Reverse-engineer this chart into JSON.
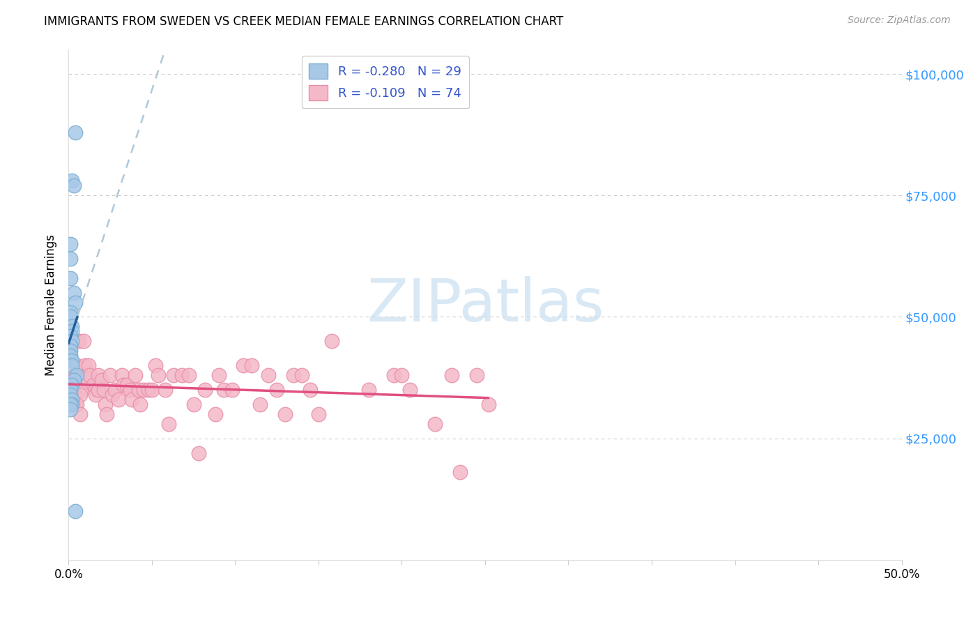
{
  "title": "IMMIGRANTS FROM SWEDEN VS CREEK MEDIAN FEMALE EARNINGS CORRELATION CHART",
  "source": "Source: ZipAtlas.com",
  "ylabel": "Median Female Earnings",
  "y_ticks": [
    0,
    25000,
    50000,
    75000,
    100000
  ],
  "y_tick_labels": [
    "",
    "$25,000",
    "$50,000",
    "$75,000",
    "$100,000"
  ],
  "xlim": [
    0.0,
    0.5
  ],
  "ylim": [
    0,
    105000
  ],
  "legend_R1": "-0.280",
  "legend_N1": "29",
  "legend_R2": "-0.109",
  "legend_N2": "74",
  "color_sweden": "#a8c8e8",
  "color_creek": "#f4b8c8",
  "color_sweden_edge": "#7aaed0",
  "color_creek_edge": "#e890a8",
  "color_sweden_line": "#2060a0",
  "color_creek_line": "#e05080",
  "color_dashed_line": "#b0c8d8",
  "background_color": "#ffffff",
  "grid_color": "#cccccc",
  "watermark_color": "#c8dff0",
  "sweden_x": [
    0.001,
    0.004,
    0.001,
    0.002,
    0.003,
    0.003,
    0.004,
    0.001,
    0.001,
    0.002,
    0.002,
    0.001,
    0.002,
    0.001,
    0.001,
    0.001,
    0.002,
    0.002,
    0.005,
    0.003,
    0.002,
    0.001,
    0.001,
    0.002,
    0.002,
    0.001,
    0.001,
    0.004,
    0.001
  ],
  "sweden_y": [
    62000,
    88000,
    58000,
    78000,
    77000,
    55000,
    53000,
    51000,
    50000,
    48000,
    47000,
    46000,
    45000,
    44000,
    43000,
    42000,
    41000,
    40000,
    38000,
    37000,
    36000,
    35000,
    34000,
    33000,
    32000,
    32000,
    31000,
    10000,
    65000
  ],
  "creek_x": [
    0.003,
    0.004,
    0.004,
    0.005,
    0.006,
    0.004,
    0.006,
    0.008,
    0.007,
    0.005,
    0.007,
    0.009,
    0.01,
    0.011,
    0.012,
    0.013,
    0.015,
    0.016,
    0.016,
    0.018,
    0.018,
    0.02,
    0.021,
    0.022,
    0.023,
    0.025,
    0.026,
    0.028,
    0.03,
    0.032,
    0.033,
    0.035,
    0.037,
    0.038,
    0.04,
    0.042,
    0.043,
    0.045,
    0.048,
    0.05,
    0.052,
    0.054,
    0.058,
    0.06,
    0.063,
    0.068,
    0.072,
    0.075,
    0.078,
    0.082,
    0.088,
    0.09,
    0.093,
    0.098,
    0.105,
    0.11,
    0.115,
    0.12,
    0.125,
    0.13,
    0.135,
    0.14,
    0.145,
    0.15,
    0.158,
    0.18,
    0.195,
    0.2,
    0.205,
    0.22,
    0.23,
    0.235,
    0.245,
    0.252
  ],
  "creek_y": [
    35000,
    38000,
    32000,
    40000,
    45000,
    36000,
    35000,
    35000,
    34000,
    32000,
    30000,
    45000,
    40000,
    38000,
    40000,
    38000,
    36000,
    35000,
    34000,
    38000,
    35000,
    37000,
    35000,
    32000,
    30000,
    38000,
    34000,
    35000,
    33000,
    38000,
    36000,
    36000,
    35000,
    33000,
    38000,
    35000,
    32000,
    35000,
    35000,
    35000,
    40000,
    38000,
    35000,
    28000,
    38000,
    38000,
    38000,
    32000,
    22000,
    35000,
    30000,
    38000,
    35000,
    35000,
    40000,
    40000,
    32000,
    38000,
    35000,
    30000,
    38000,
    38000,
    35000,
    30000,
    45000,
    35000,
    38000,
    38000,
    35000,
    28000,
    38000,
    18000,
    38000,
    32000
  ]
}
